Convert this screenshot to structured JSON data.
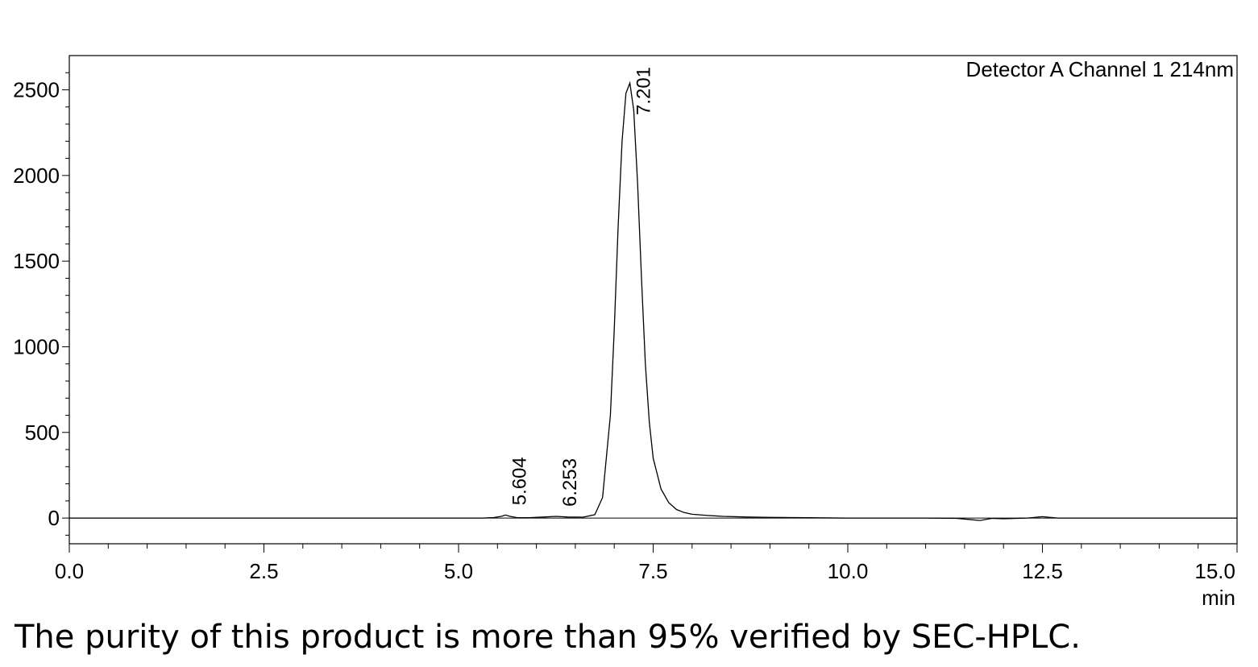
{
  "chart_data": {
    "type": "line",
    "title": "",
    "channel_label": "Detector A Channel 1 214nm",
    "xlabel": "min",
    "ylabel": "",
    "xlim": [
      0.0,
      15.0
    ],
    "ylim": [
      -150,
      2700
    ],
    "x_ticks": [
      0.0,
      2.5,
      5.0,
      7.5,
      10.0,
      12.5,
      15.0
    ],
    "x_tick_labels": [
      "0.0",
      "2.5",
      "5.0",
      "7.5",
      "10.0",
      "12.5",
      "15.0"
    ],
    "y_ticks": [
      0,
      500,
      1000,
      1500,
      2000,
      2500
    ],
    "y_tick_labels": [
      "0",
      "500",
      "1000",
      "1500",
      "2000",
      "2500"
    ],
    "grid": false,
    "series": [
      {
        "x": [
          0.0,
          4.4,
          5.3,
          5.45,
          5.55,
          5.604,
          5.66,
          5.75,
          5.9,
          6.1,
          6.253,
          6.4,
          6.6,
          6.75,
          6.85,
          6.95,
          7.0,
          7.05,
          7.1,
          7.15,
          7.201,
          7.25,
          7.3,
          7.35,
          7.4,
          7.45,
          7.5,
          7.6,
          7.7,
          7.8,
          7.9,
          8.0,
          8.2,
          8.4,
          8.7,
          9.0,
          9.5,
          10.0,
          11.0,
          11.4,
          11.55,
          11.7,
          11.85,
          12.0,
          12.3,
          12.5,
          12.7,
          13.0,
          14.0,
          15.0
        ],
        "y": [
          0,
          0,
          0,
          3,
          10,
          18,
          10,
          3,
          2,
          6,
          10,
          6,
          5,
          20,
          120,
          600,
          1100,
          1700,
          2200,
          2480,
          2540,
          2380,
          1950,
          1400,
          900,
          560,
          350,
          170,
          90,
          50,
          32,
          22,
          15,
          10,
          6,
          4,
          2,
          0,
          0,
          -2,
          -8,
          -14,
          -2,
          -4,
          0,
          8,
          0,
          0,
          0,
          0
        ]
      }
    ],
    "peaks": [
      {
        "label": "5.604",
        "x": 5.604,
        "y": 18
      },
      {
        "label": "6.253",
        "x": 6.253,
        "y": 10
      },
      {
        "label": "7.201",
        "x": 7.201,
        "y": 2540
      }
    ]
  },
  "caption": "The purity of this product is more than 95% verified by SEC-HPLC."
}
